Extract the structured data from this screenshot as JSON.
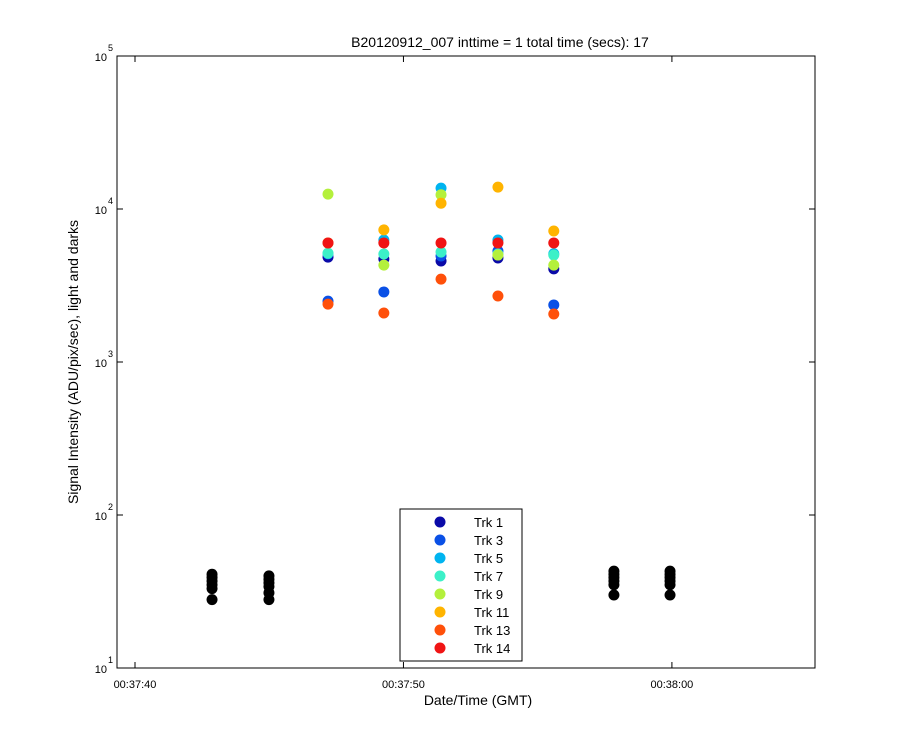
{
  "chart_data": {
    "type": "scatter",
    "title": "B20120912_007 inttime = 1 total time (secs): 17",
    "xlabel": "Date/Time (GMT)",
    "ylabel": "Signal Intensity (ADU/pix/sec), light and darks",
    "log_y": true,
    "xlim": [
      2259.33,
      2285.33
    ],
    "xticks": [
      {
        "value": 2260,
        "label": "00:37:40"
      },
      {
        "value": 2270,
        "label": "00:37:50"
      },
      {
        "value": 2280,
        "label": "00:38:00"
      }
    ],
    "ylim": [
      10,
      100000
    ],
    "yticks": [
      {
        "value": 10,
        "label": "10",
        "exponent": "1"
      },
      {
        "value": 100,
        "label": "10",
        "exponent": "2"
      },
      {
        "value": 1000,
        "label": "10",
        "exponent": "3"
      },
      {
        "value": 10000,
        "label": "10",
        "exponent": "4"
      },
      {
        "value": 100000,
        "label": "10",
        "exponent": "5"
      }
    ],
    "legend": "bottom-center",
    "series": [
      {
        "color": "#000000",
        "x": [
          2262.87,
          2262.87,
          2262.87,
          2262.87,
          2262.87,
          2262.87,
          2264.99,
          2264.99,
          2264.99,
          2264.99,
          2264.99,
          2264.99,
          2277.84,
          2277.84,
          2277.84,
          2277.84,
          2277.84,
          2277.84,
          2279.93,
          2279.93,
          2279.93,
          2279.93,
          2279.93,
          2279.93
        ],
        "values": [
          41,
          39,
          37,
          35,
          33,
          28,
          40,
          38,
          36,
          34,
          31,
          28,
          43,
          41,
          39,
          37,
          35,
          30,
          43,
          41,
          39,
          37,
          35,
          30
        ]
      },
      {
        "name": "Trk 1",
        "color": "#0a0aa8",
        "x": [
          2267.19,
          2269.27,
          2271.4,
          2273.52,
          2275.6
        ],
        "values": [
          4850,
          4710,
          4570,
          4780,
          4060
        ]
      },
      {
        "name": "Trk 3",
        "color": "#0a50e6",
        "x": [
          2267.19,
          2269.27,
          2271.4,
          2273.52,
          2275.6
        ],
        "values": [
          2500,
          2870,
          4930,
          5310,
          2360
        ]
      },
      {
        "name": "Trk 5",
        "color": "#00b4f0",
        "x": [
          2267.19,
          2269.27,
          2271.4,
          2273.52,
          2275.6
        ],
        "values": [
          5100,
          6270,
          13700,
          6270,
          5100
        ]
      },
      {
        "name": "Trk 7",
        "color": "#3cf0c8",
        "x": [
          2267.19,
          2269.27,
          2271.4,
          2273.52,
          2275.6
        ],
        "values": [
          5150,
          5080,
          5230,
          5080,
          5000
        ]
      },
      {
        "name": "Trk 9",
        "color": "#b4f03c",
        "x": [
          2267.19,
          2269.27,
          2271.4,
          2273.52,
          2275.6
        ],
        "values": [
          12500,
          4300,
          12400,
          5000,
          4300
        ]
      },
      {
        "name": "Trk 11",
        "color": "#ffb400",
        "x": [
          2267.19,
          2269.27,
          2271.4,
          2273.52,
          2275.6
        ],
        "values": [
          6000,
          7300,
          10900,
          13900,
          7180
        ]
      },
      {
        "name": "Trk 13",
        "color": "#ff500a",
        "x": [
          2267.19,
          2269.27,
          2271.4,
          2273.52,
          2275.6
        ],
        "values": [
          2390,
          2090,
          3480,
          2700,
          2060
        ]
      },
      {
        "name": "Trk 14",
        "color": "#f01414",
        "x": [
          2267.19,
          2269.27,
          2271.4,
          2273.52,
          2275.6
        ],
        "values": [
          6000,
          6000,
          6000,
          6000,
          6000
        ]
      }
    ]
  }
}
